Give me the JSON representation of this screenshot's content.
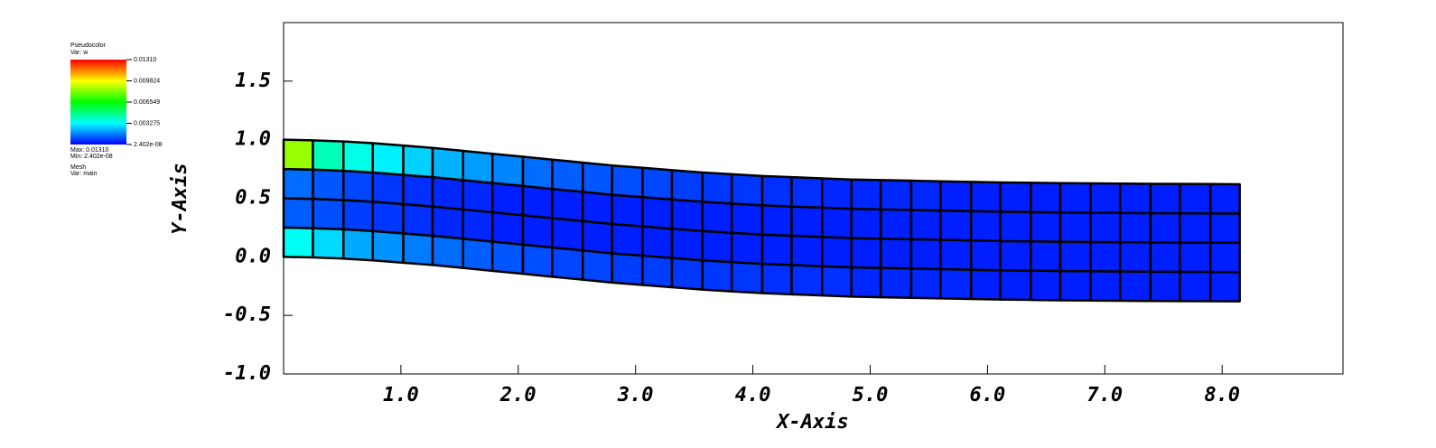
{
  "chart_data": {
    "type": "mesh",
    "xlabel": "X-Axis",
    "ylabel": "Y-Axis",
    "xlim": [
      0,
      9.03
    ],
    "ylim": [
      -1,
      2
    ],
    "xticks": [
      {
        "value": 1,
        "label": "1.0"
      },
      {
        "value": 2,
        "label": "2.0"
      },
      {
        "value": 3,
        "label": "3.0"
      },
      {
        "value": 4,
        "label": "4.0"
      },
      {
        "value": 5,
        "label": "5.0"
      },
      {
        "value": 6,
        "label": "6.0"
      },
      {
        "value": 7,
        "label": "7.0"
      },
      {
        "value": 8,
        "label": "8.0"
      }
    ],
    "yticks": [
      {
        "value": -1,
        "label": "-1.0"
      },
      {
        "value": -0.5,
        "label": "-0.5"
      },
      {
        "value": 0,
        "label": "0.0"
      },
      {
        "value": 0.5,
        "label": "0.5"
      },
      {
        "value": 1,
        "label": "1.0"
      },
      {
        "value": 1.5,
        "label": "1.5"
      }
    ],
    "legend": {
      "plot": "Pseudocolor",
      "var": "Var: w",
      "ticks": [
        {
          "value": 0.0131,
          "label": "0.01310"
        },
        0.009824,
        0.006549,
        0.003275,
        {
          "value": 2.402e-08,
          "label": "2.402e-08"
        }
      ],
      "max": "Max: 0.01310",
      "min": "Min: 2.402e-08",
      "mesh": "Mesh",
      "mesh_var": "Var: main"
    },
    "colorbar_range": [
      2.402e-08,
      0.0131
    ],
    "mesh": {
      "x": [
        0,
        0.25,
        0.51,
        0.76,
        1.02,
        1.27,
        1.53,
        1.78,
        2.04,
        2.29,
        2.55,
        2.8,
        3.06,
        3.31,
        3.57,
        3.82,
        4.08,
        4.33,
        4.59,
        4.84,
        5.09,
        5.35,
        5.6,
        5.86,
        6.11,
        6.37,
        6.62,
        6.88,
        7.13,
        7.39,
        7.64,
        7.9,
        8.15
      ],
      "y_bottom": [
        0,
        -0.005,
        -0.015,
        -0.03,
        -0.05,
        -0.07,
        -0.095,
        -0.12,
        -0.145,
        -0.17,
        -0.195,
        -0.22,
        -0.24,
        -0.26,
        -0.28,
        -0.295,
        -0.31,
        -0.32,
        -0.33,
        -0.34,
        -0.345,
        -0.35,
        -0.355,
        -0.36,
        -0.365,
        -0.368,
        -0.371,
        -0.373,
        -0.375,
        -0.377,
        -0.378,
        -0.379,
        -0.38
      ],
      "y_top": [
        1,
        0.995,
        0.985,
        0.97,
        0.95,
        0.93,
        0.905,
        0.88,
        0.855,
        0.83,
        0.805,
        0.78,
        0.76,
        0.74,
        0.72,
        0.705,
        0.69,
        0.68,
        0.67,
        0.66,
        0.655,
        0.65,
        0.645,
        0.64,
        0.635,
        0.632,
        0.629,
        0.627,
        0.625,
        0.623,
        0.622,
        0.621,
        0.62
      ],
      "cell_values": [
        [
          0.0034,
          0.0028,
          0.0022,
          0.0019,
          0.0016,
          0.0014,
          0.0012,
          0.0011,
          0.001,
          0.0009,
          0.0009,
          0.0008,
          0.0008,
          0.0007,
          0.0007,
          0.0007,
          0.0006,
          0.0006,
          0.0006,
          0.0005,
          0.0005,
          0.0005,
          0.0005,
          0.0004,
          0.0004,
          0.0004,
          0.0004,
          0.0004,
          0.0004,
          0.0004,
          0.0004,
          0.0004
        ],
        [
          0.0012,
          0.001,
          0.0008,
          0.0007,
          0.0006,
          0.0005,
          0.0005,
          0.0004,
          0.0004,
          0.0004,
          0.0004,
          0.0004,
          0.0004,
          0.0004,
          0.0004,
          0.0004,
          0.0004,
          0.0004,
          0.0004,
          0.0004,
          0.0004,
          0.0004,
          0.0004,
          0.0004,
          0.0004,
          0.0004,
          0.0004,
          0.0004,
          0.0004,
          0.0004,
          0.0004,
          0.0004
        ],
        [
          0.0014,
          0.0011,
          0.0009,
          0.0007,
          0.0006,
          0.0005,
          0.0005,
          0.0004,
          0.0004,
          0.0004,
          0.0004,
          0.0004,
          0.0004,
          0.0004,
          0.0004,
          0.0004,
          0.0004,
          0.0004,
          0.0004,
          0.0004,
          0.0004,
          0.0004,
          0.0004,
          0.0004,
          0.0004,
          0.0004,
          0.0004,
          0.0004,
          0.0004,
          0.0004,
          0.0004,
          0.0004
        ],
        [
          0.0085,
          0.0042,
          0.0036,
          0.0031,
          0.0027,
          0.0023,
          0.002,
          0.0017,
          0.0014,
          0.0012,
          0.0011,
          0.001,
          0.0009,
          0.0008,
          0.0007,
          0.0007,
          0.0006,
          0.0006,
          0.0005,
          0.0005,
          0.0005,
          0.0005,
          0.0004,
          0.0004,
          0.0004,
          0.0004,
          0.0004,
          0.0004,
          0.0004,
          0.0004,
          0.0004,
          0.0004
        ]
      ]
    }
  }
}
